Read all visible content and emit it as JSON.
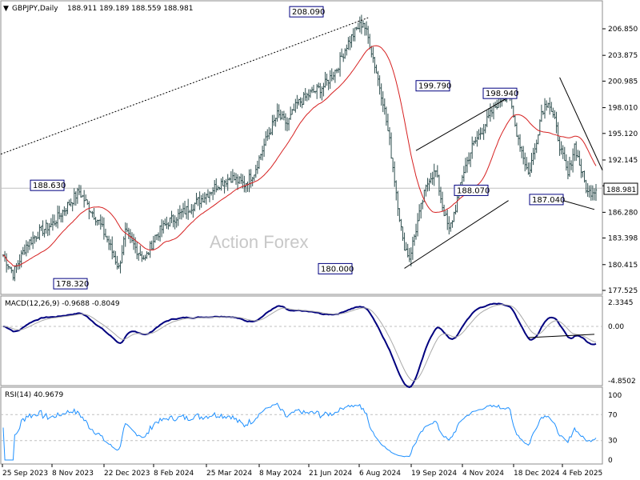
{
  "header": {
    "symbol_tf": "GBPJPY,Daily",
    "ohlc": "188.911 189.189 188.559 188.981"
  },
  "watermark": "Action Forex",
  "colors": {
    "bar": "#2f4f4f",
    "moving_average": "#d62020",
    "macd_line": "#00007f",
    "macd_signal": "#a9a9a9",
    "rsi_line": "#1e90ff",
    "trendline": "#000000",
    "grid_level": "#c0c0c0",
    "label_border": "#000080"
  },
  "chart_data": [
    {
      "type": "candlestick",
      "title": "GBPJPY,Daily",
      "y_ticks": [
        "206.850",
        "203.875",
        "200.985",
        "198.010",
        "195.120",
        "192.145",
        "189.255",
        "186.280",
        "183.398",
        "180.415",
        "177.525"
      ],
      "ylim": [
        177.5,
        208.5
      ],
      "x_ticks": [
        "25 Sep 2023",
        "8 Nov 2023",
        "22 Dec 2023",
        "8 Feb 2024",
        "25 Mar 2024",
        "8 May 2024",
        "21 Jun 2024",
        "6 Aug 2024",
        "19 Sep 2024",
        "4 Nov 2024",
        "18 Dec 2024",
        "4 Feb 2025"
      ],
      "current_price": "188.981",
      "close_approx": {
        "dates": [
          "25 Sep 2023",
          "8 Nov 2023",
          "22 Dec 2023",
          "8 Feb 2024",
          "25 Mar 2024",
          "8 May 2024",
          "21 Jun 2024",
          "6 Aug 2024",
          "19 Sep 2024",
          "4 Nov 2024",
          "18 Dec 2024",
          "4 Feb 2025"
        ],
        "values": [
          181.5,
          186.9,
          179.6,
          187.3,
          191.8,
          195.0,
          202.5,
          181.5,
          189.8,
          198.6,
          192.8,
          189.9
        ]
      },
      "annotations": [
        {
          "text": "208.090",
          "value": 208.09
        },
        {
          "text": "199.790",
          "value": 199.79
        },
        {
          "text": "198.940",
          "value": 198.94
        },
        {
          "text": "188.630",
          "value": 188.63
        },
        {
          "text": "188.070",
          "value": 188.07
        },
        {
          "text": "187.040",
          "value": 187.04
        },
        {
          "text": "178.320",
          "value": 178.32
        },
        {
          "text": "180.000",
          "value": 180.0
        }
      ]
    },
    {
      "type": "line",
      "title": "MACD(12,26,9) -0.9688 -0.8049",
      "y_ticks": [
        "2.3345",
        "0.00",
        "-4.8502"
      ],
      "ylim": [
        -4.85,
        2.8
      ]
    },
    {
      "type": "line",
      "title": "RSI(14) 40.9679",
      "y_ticks": [
        "100",
        "70",
        "30",
        "0"
      ],
      "ylim": [
        0,
        100
      ],
      "levels": [
        70,
        30
      ]
    }
  ]
}
